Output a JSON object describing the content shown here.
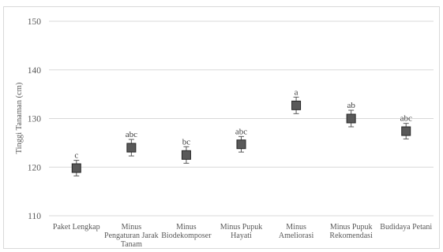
{
  "chart_data": {
    "type": "scatter",
    "ylabel": "Tinggi Tanaman (cm)",
    "ylim": [
      110,
      150
    ],
    "yticks": [
      110,
      120,
      130,
      140,
      150
    ],
    "grid": true,
    "categories": [
      [
        "Paket Lengkap"
      ],
      [
        "Minus",
        "Pengaturan Jarak",
        "Tanam"
      ],
      [
        "Minus",
        "Biodekomposer"
      ],
      [
        "Minus Pupuk",
        "Hayati"
      ],
      [
        "Minus",
        "Ameliorasi"
      ],
      [
        "Minus Pupuk",
        "Rekomendasi"
      ],
      [
        "Budidaya Petani"
      ]
    ],
    "series": [
      {
        "values": [
          119.8,
          124.0,
          122.5,
          124.7,
          132.7,
          130.0,
          127.4
        ],
        "error": [
          1.6,
          1.7,
          1.7,
          1.6,
          1.7,
          1.7,
          1.6
        ],
        "labels": [
          "c",
          "abc",
          "bc",
          "abc",
          "a",
          "ab",
          "abc"
        ]
      }
    ],
    "colors": {
      "marker": "#595959",
      "marker_edge": "#262626",
      "grid": "#d9d9d9",
      "error_bar": "#595959"
    }
  }
}
